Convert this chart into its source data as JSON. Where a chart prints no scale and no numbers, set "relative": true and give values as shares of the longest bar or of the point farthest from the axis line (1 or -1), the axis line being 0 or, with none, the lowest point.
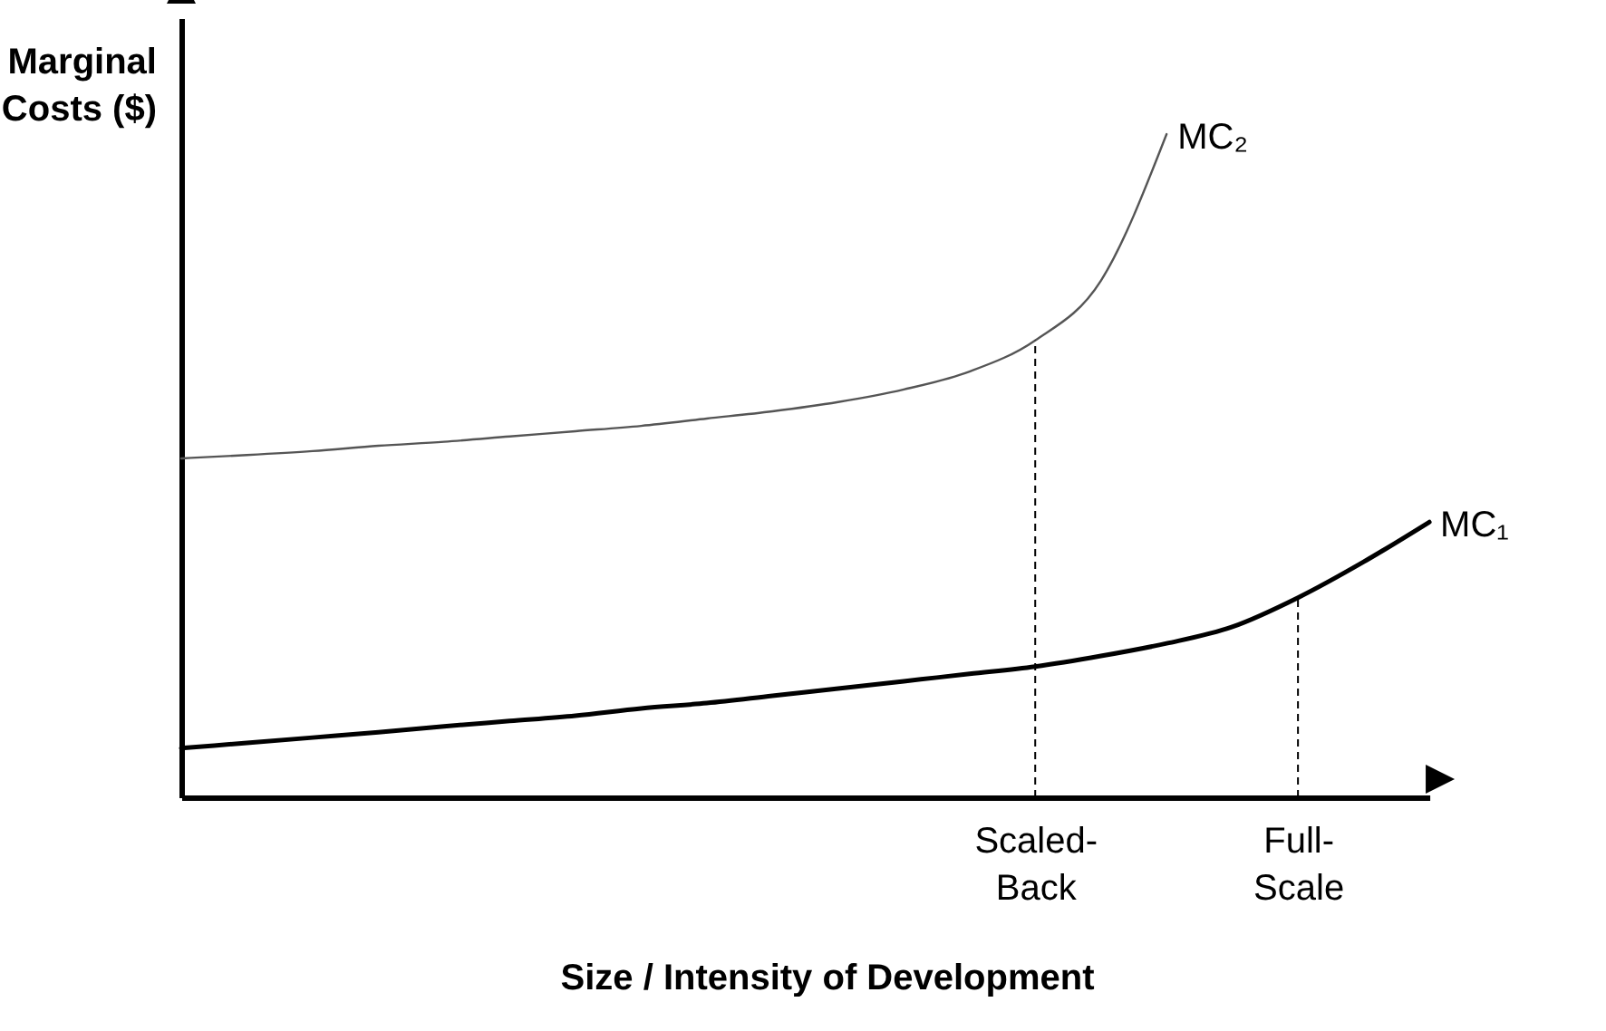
{
  "chart_data": {
    "type": "line",
    "relative": true,
    "xlabel": "Size / Intensity of Development",
    "ylabel": "Marginal Costs ($)",
    "categories": [
      null,
      null,
      null,
      null,
      null,
      null,
      null,
      null,
      null,
      null,
      null,
      null,
      null,
      "Scaled-Back",
      null,
      null,
      null,
      "Full-Scale",
      null,
      null
    ],
    "series": [
      {
        "name": "MC₂",
        "color": "#555555",
        "values": [
          0.511,
          0.516,
          0.522,
          0.53,
          0.536,
          0.544,
          0.552,
          0.56,
          0.571,
          0.582,
          0.596,
          0.615,
          0.642,
          0.689,
          0.779,
          1,
          null,
          null,
          null,
          null
        ]
      },
      {
        "name": "MC₁",
        "color": "#000000",
        "values": [
          0.074,
          0.082,
          0.09,
          0.098,
          0.107,
          0.115,
          0.123,
          0.134,
          0.142,
          0.153,
          0.164,
          0.175,
          0.186,
          0.197,
          0.213,
          0.232,
          0.257,
          0.301,
          0.355,
          0.415
        ]
      }
    ],
    "ref_lines": [
      {
        "axis": "x",
        "value": "Scaled-Back",
        "line_style": "dashed"
      },
      {
        "axis": "x",
        "value": "Full-Scale",
        "line_style": "dashed"
      }
    ],
    "grid": false,
    "legend": false,
    "marker": "none",
    "line_style": "solid"
  }
}
